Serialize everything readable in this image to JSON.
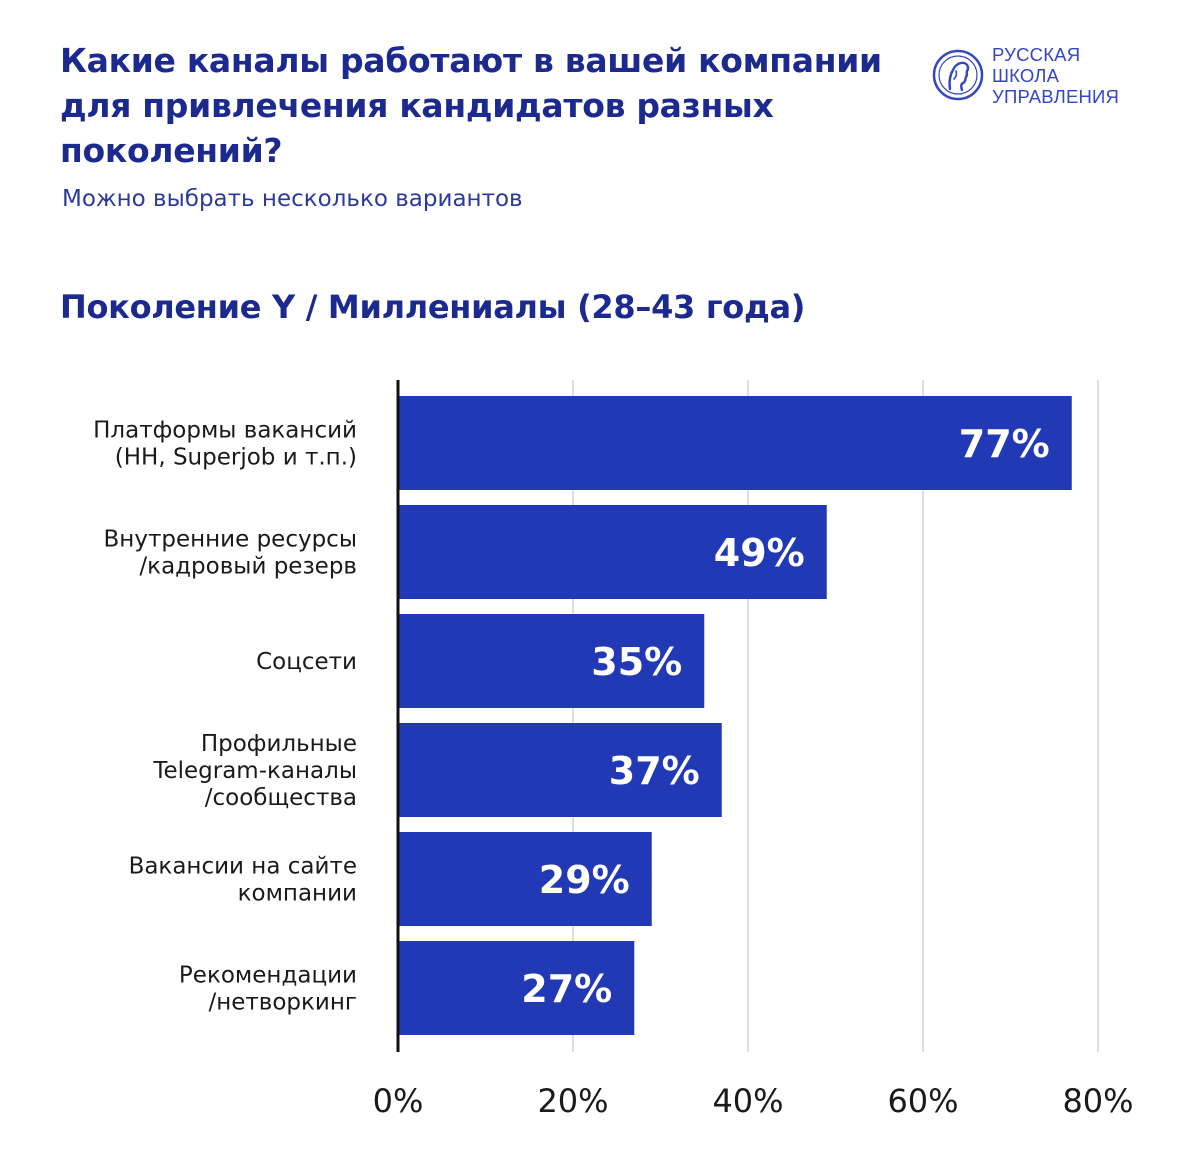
{
  "header": {
    "title": "Какие каналы работают в вашей компании для привлечения кандидатов разных поколений?",
    "subtitle": "Можно выбрать несколько вариантов"
  },
  "logo": {
    "lines": [
      "РУССКАЯ",
      "ШКОЛА",
      "УПРАВЛЕНИЯ"
    ],
    "icon": "profile-portrait-icon",
    "color": "#3346c4"
  },
  "chart_data": {
    "type": "bar",
    "orientation": "horizontal",
    "title": "Поколение Y / Миллениалы (28–43 года)",
    "categories": [
      [
        "Платформы вакансий",
        "(HH, Superjob и т.п.)"
      ],
      [
        "Внутренние ресурсы",
        "/кадровый резерв"
      ],
      [
        "Соцсети"
      ],
      [
        "Профильные",
        "Telegram-каналы",
        "/сообщества"
      ],
      [
        "Вакансии на сайте",
        "компании"
      ],
      [
        "Рекомендации",
        "/нетворкинг"
      ]
    ],
    "values": [
      77,
      49,
      35,
      37,
      29,
      27
    ],
    "value_labels": [
      "77%",
      "49%",
      "35%",
      "37%",
      "29%",
      "27%"
    ],
    "xlim": [
      0,
      80
    ],
    "xticks": [
      0,
      20,
      40,
      60,
      80
    ],
    "xtick_labels": [
      "0%",
      "20%",
      "40%",
      "60%",
      "80%"
    ],
    "grid": true,
    "bar_color": "#2239b6"
  }
}
